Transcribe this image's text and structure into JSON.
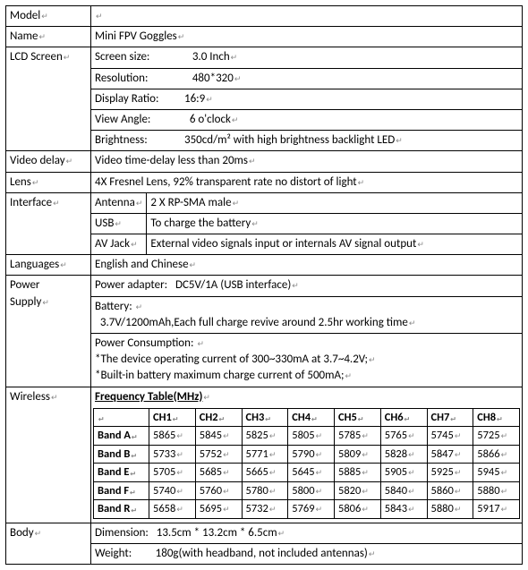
{
  "colors": {
    "border": "#000000",
    "text": "#000000",
    "bg": "#ffffff",
    "ret": "#888888"
  },
  "fonts": {
    "family": "Calibri, Arial, sans-serif",
    "size_pt": 10
  },
  "labels": {
    "model": "Model",
    "name": "Name",
    "lcd": "LCD Screen",
    "video_delay": "Video delay",
    "lens": "Lens",
    "interface": "Interface",
    "languages": "Languages",
    "power": "Power Supply",
    "wireless": "Wireless",
    "body": "Body"
  },
  "model": "",
  "name": "Mini FPV Goggles",
  "lcd": {
    "screen_size_k": "Screen size:",
    "screen_size_v": "3.0 Inch",
    "resolution_k": "Resolution:",
    "resolution_v": "480*320",
    "ratio_k": "Display Ratio:",
    "ratio_v": "16:9",
    "view_angle_k": "View Angle:",
    "view_angle_v": "6 o'clock",
    "brightness_k": "Brightness:",
    "brightness_v": "350cd/m² with high brightness backlight LED"
  },
  "video_delay": "Video time-delay less than 20ms",
  "lens": "4X Fresnel Lens, 92% transparent rate no distort of light",
  "interface": {
    "antenna_k": "Antenna",
    "antenna_v": "2 X RP-SMA male",
    "usb_k": "USB",
    "usb_v": "To charge the battery",
    "avjack_k": "AV Jack",
    "avjack_v": "External video signals input or internals AV signal output"
  },
  "languages": "English and Chinese",
  "power": {
    "adapter_k": "Power adapter:",
    "adapter_v": "DC5V/1A (USB interface)",
    "battery_k": "Battery:",
    "battery_v": "3.7V/1200mAh,Each full charge revive around 2.5hr working time",
    "consumption_k": "Power Consumption:",
    "consumption_l1": "*The device operating current of 300~330mA at 3.7~4.2V;",
    "consumption_l2": "*Built-in battery maximum charge current of 500mA;"
  },
  "wireless": {
    "title": "Frequency Table(MHz)",
    "columns": [
      "",
      "CH1",
      "CH2",
      "CH3",
      "CH4",
      "CH5",
      "CH6",
      "CH7",
      "CH8"
    ],
    "rows": [
      {
        "band": "Band A",
        "v": [
          5865,
          5845,
          5825,
          5805,
          5785,
          5765,
          5745,
          5725
        ]
      },
      {
        "band": "Band B",
        "v": [
          5733,
          5752,
          5771,
          5790,
          5809,
          5828,
          5847,
          5866
        ]
      },
      {
        "band": "Band E",
        "v": [
          5705,
          5685,
          5665,
          5645,
          5885,
          5905,
          5925,
          5945
        ]
      },
      {
        "band": "Band F",
        "v": [
          5740,
          5760,
          5780,
          5800,
          5820,
          5840,
          5860,
          5880
        ]
      },
      {
        "band": "Band R",
        "v": [
          5658,
          5695,
          5732,
          5769,
          5806,
          5843,
          5880,
          5917
        ]
      }
    ]
  },
  "body": {
    "dimension_k": "Dimension:",
    "dimension_v": "13.5cm * 13.2cm * 6.5cm",
    "weight_k": "Weight:",
    "weight_v": "180g(with headband, not included antennas)"
  },
  "ret_mark": "↵"
}
